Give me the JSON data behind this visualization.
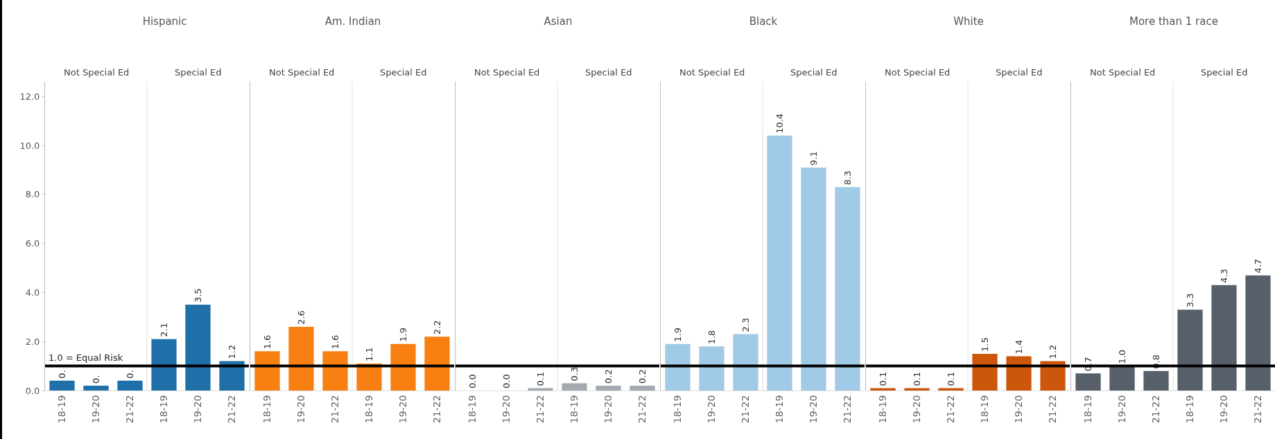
{
  "chart_data": [
    {
      "type": "bar",
      "title": "Hispanic",
      "annotations": [
        "Not Special Ed",
        "Special Ed"
      ],
      "categories": [
        "18-19",
        "19-20",
        "21-22",
        "18-19",
        "19-20",
        "21-22"
      ],
      "ylim": [
        0,
        12.6
      ],
      "yticks": [
        {
          "value": 0,
          "label": "0.0"
        },
        {
          "value": 2,
          "label": "2.0"
        },
        {
          "value": 4,
          "label": "4.0"
        },
        {
          "value": 6,
          "label": "6.0"
        },
        {
          "value": 8,
          "label": "8.0"
        },
        {
          "value": 10,
          "label": "10.0"
        },
        {
          "value": 12,
          "label": "12.0"
        }
      ],
      "grid": false,
      "color": "#1f6fa8",
      "values": [
        0.4,
        0.2,
        0.4,
        2.1,
        3.5,
        1.2
      ],
      "value_labels": [
        "0.",
        "0.",
        "0.",
        "2.1",
        "3.5",
        "1.2"
      ],
      "ref_lines": [
        {
          "axis": "y",
          "value": 1.0,
          "label": "1.0 = Equal Risk",
          "color": "#000000"
        }
      ]
    },
    {
      "type": "bar",
      "title": "Am. Indian",
      "annotations": [
        "Not Special Ed",
        "Special Ed"
      ],
      "categories": [
        "18-19",
        "19-20",
        "21-22",
        "18-19",
        "19-20",
        "21-22"
      ],
      "ylim": [
        0,
        12.6
      ],
      "tick_labels": "x",
      "grid": false,
      "color": "#f88012",
      "values": [
        1.6,
        2.6,
        1.6,
        1.1,
        1.9,
        2.2
      ],
      "value_labels": [
        "1.6",
        "2.6",
        "1.6",
        "1.1",
        "1.9",
        "2.2"
      ],
      "ref_lines": [
        {
          "axis": "y",
          "value": 1.0,
          "color": "#000000"
        }
      ]
    },
    {
      "type": "bar",
      "title": "Asian",
      "annotations": [
        "Not Special Ed",
        "Special Ed"
      ],
      "categories": [
        "18-19",
        "19-20",
        "21-22",
        "18-19",
        "19-20",
        "21-22"
      ],
      "ylim": [
        0,
        12.6
      ],
      "tick_labels": "x",
      "grid": false,
      "color": "#a3a9b0",
      "values": [
        0.0,
        0.0,
        0.1,
        0.3,
        0.2,
        0.2
      ],
      "value_labels": [
        "0.0",
        "0.0",
        "0.1",
        "0.3",
        "0.2",
        "0.2"
      ],
      "ref_lines": [
        {
          "axis": "y",
          "value": 1.0,
          "color": "#000000"
        }
      ]
    },
    {
      "type": "bar",
      "title": "Black",
      "annotations": [
        "Not Special Ed",
        "Special Ed"
      ],
      "categories": [
        "18-19",
        "19-20",
        "21-22",
        "18-19",
        "19-20",
        "21-22"
      ],
      "ylim": [
        0,
        12.6
      ],
      "tick_labels": "x",
      "grid": false,
      "color": "#a0cae6",
      "values": [
        1.9,
        1.8,
        2.3,
        10.4,
        9.1,
        8.3
      ],
      "value_labels": [
        "1.9",
        "1.8",
        "2.3",
        "10.4",
        "9.1",
        "8.3"
      ],
      "ref_lines": [
        {
          "axis": "y",
          "value": 1.0,
          "color": "#000000"
        }
      ]
    },
    {
      "type": "bar",
      "title": "White",
      "annotations": [
        "Not Special Ed",
        "Special Ed"
      ],
      "categories": [
        "18-19",
        "19-20",
        "21-22",
        "18-19",
        "19-20",
        "21-22"
      ],
      "ylim": [
        0,
        12.6
      ],
      "tick_labels": "x",
      "grid": false,
      "color": "#cc560b",
      "values": [
        0.1,
        0.1,
        0.1,
        1.5,
        1.4,
        1.2
      ],
      "value_labels": [
        "0.1",
        "0.1",
        "0.1",
        "1.5",
        "1.4",
        "1.2"
      ],
      "ref_lines": [
        {
          "axis": "y",
          "value": 1.0,
          "color": "#000000"
        }
      ]
    },
    {
      "type": "bar",
      "title": "More than 1 race",
      "annotations": [
        "Not Special Ed",
        "Special Ed"
      ],
      "categories": [
        "18-19",
        "19-20",
        "21-22",
        "18-19",
        "19-20",
        "21-22"
      ],
      "ylim": [
        0,
        12.6
      ],
      "tick_labels": "x",
      "grid": false,
      "color": "#575f6a",
      "values": [
        0.7,
        1.0,
        0.8,
        3.3,
        4.3,
        4.7
      ],
      "value_labels": [
        "0.7",
        "1.0",
        "0.8",
        "3.3",
        "4.3",
        "4.7"
      ],
      "ref_lines": [
        {
          "axis": "y",
          "value": 1.0,
          "color": "#000000"
        }
      ]
    }
  ]
}
